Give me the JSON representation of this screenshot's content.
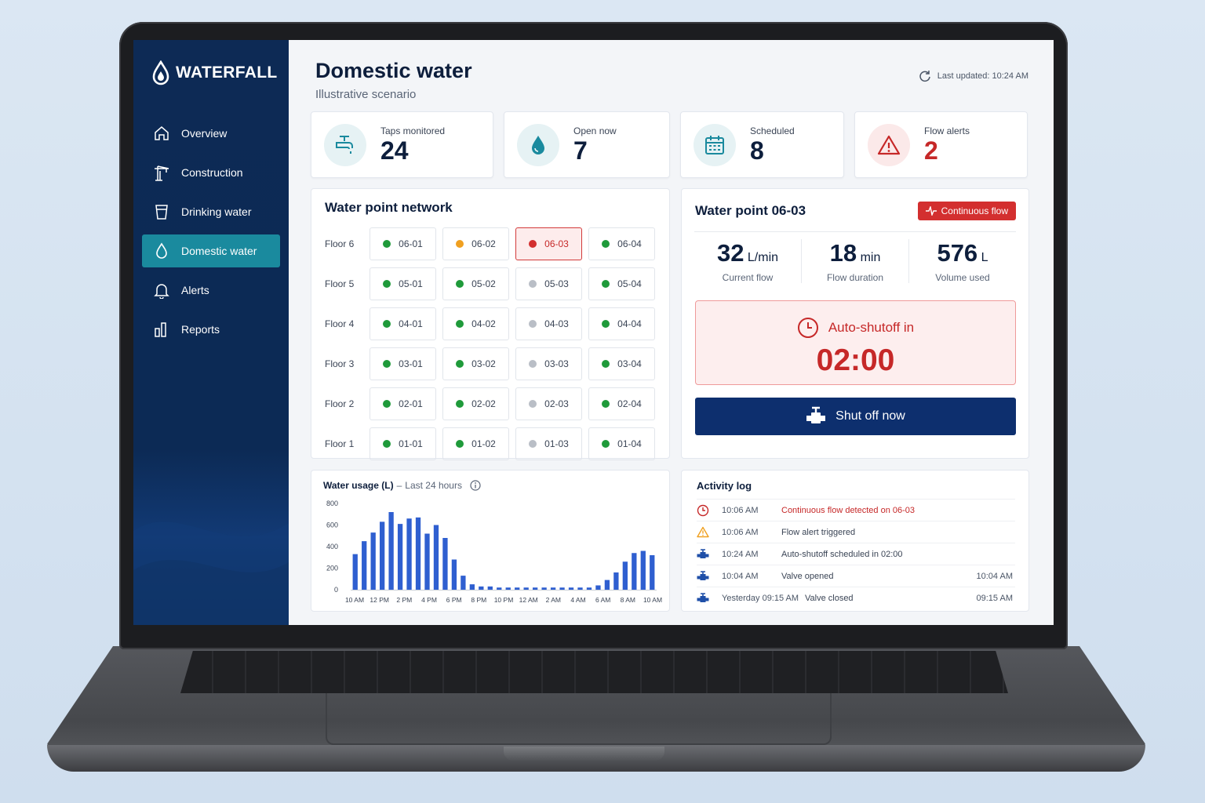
{
  "brand": {
    "name": "WATERFALL"
  },
  "nav": {
    "items": [
      {
        "label": "Overview",
        "icon": "home-icon"
      },
      {
        "label": "Construction",
        "icon": "crane-icon"
      },
      {
        "label": "Drinking water",
        "icon": "cup-icon"
      },
      {
        "label": "Domestic water",
        "icon": "droplet-icon",
        "active": true
      },
      {
        "label": "Alerts",
        "icon": "bell-icon"
      },
      {
        "label": "Reports",
        "icon": "bar-chart-icon"
      }
    ]
  },
  "header": {
    "title": "Domestic water",
    "subtitle": "Illustrative scenario",
    "last_updated": "Last updated: 10:24 AM"
  },
  "kpis": [
    {
      "label": "Taps monitored",
      "value": "24",
      "icon": "faucet-icon"
    },
    {
      "label": "Open now",
      "value": "7",
      "icon": "droplet-icon"
    },
    {
      "label": "Scheduled",
      "value": "8",
      "icon": "calendar-icon"
    },
    {
      "label": "Flow alerts",
      "value": "2",
      "icon": "warning-icon",
      "color": "#c62828"
    }
  ],
  "network": {
    "title": "Water point network",
    "rows": [
      {
        "floor": "Floor 6",
        "taps": [
          [
            "06-01",
            "green"
          ],
          [
            "06-02",
            "orange"
          ],
          [
            "06-03",
            "red"
          ],
          [
            "06-04",
            "green"
          ]
        ]
      },
      {
        "floor": "Floor 5",
        "taps": [
          [
            "05-01",
            "green"
          ],
          [
            "05-02",
            "green"
          ],
          [
            "05-03",
            "gray"
          ],
          [
            "05-04",
            "green"
          ]
        ]
      },
      {
        "floor": "Floor 4",
        "taps": [
          [
            "04-01",
            "green"
          ],
          [
            "04-02",
            "green"
          ],
          [
            "04-03",
            "gray"
          ],
          [
            "04-04",
            "green"
          ]
        ]
      },
      {
        "floor": "Floor 3",
        "taps": [
          [
            "03-01",
            "green"
          ],
          [
            "03-02",
            "green"
          ],
          [
            "03-03",
            "gray"
          ],
          [
            "03-04",
            "green"
          ]
        ]
      },
      {
        "floor": "Floor 2",
        "taps": [
          [
            "02-01",
            "green"
          ],
          [
            "02-02",
            "green"
          ],
          [
            "02-03",
            "gray"
          ],
          [
            "02-04",
            "green"
          ]
        ]
      },
      {
        "floor": "Floor 1",
        "taps": [
          [
            "01-01",
            "green"
          ],
          [
            "01-02",
            "green"
          ],
          [
            "01-03",
            "gray"
          ],
          [
            "01-04",
            "green"
          ]
        ]
      }
    ],
    "status_colors": {
      "green": "#1f9a3a",
      "orange": "#f0a020",
      "red": "#d32f2f",
      "gray": "#b9bec6"
    }
  },
  "detail": {
    "title": "Water point 06-03",
    "badge": "Continuous flow",
    "stats": [
      {
        "value": "32",
        "unit": "L/min",
        "caption": "Current flow"
      },
      {
        "value": "18",
        "unit": "min",
        "caption": "Flow duration"
      },
      {
        "value": "576",
        "unit": "L",
        "caption": "Volume used"
      }
    ],
    "shutoff_label": "Auto-shutoff in",
    "shutoff_time": "02:00",
    "button": "Shut off now"
  },
  "chart_data": {
    "type": "bar",
    "title": "Water usage (L)",
    "subtitle": "Last 24 hours",
    "ylim": [
      0,
      800
    ],
    "yticks": [
      "800",
      "600",
      "400",
      "200",
      "0"
    ],
    "xticks": [
      "10 AM",
      "12 PM",
      "2 PM",
      "4 PM",
      "6 PM",
      "8 PM",
      "10 PM",
      "12 AM",
      "2 AM",
      "4 AM",
      "6 AM",
      "8 AM",
      "10 AM"
    ],
    "values": [
      330,
      450,
      530,
      630,
      720,
      610,
      660,
      670,
      520,
      600,
      480,
      280,
      130,
      50,
      30,
      30,
      20,
      20,
      20,
      20,
      20,
      20,
      20,
      20,
      20,
      20,
      20,
      40,
      90,
      160,
      260,
      340,
      360,
      320
    ],
    "color": "#2f5fd0"
  },
  "log": {
    "title": "Activity log",
    "entries": [
      {
        "icon": "clock-icon",
        "time": "10:06 AM",
        "text": "Continuous flow detected on 06-03",
        "right": "",
        "alert": true
      },
      {
        "icon": "warning-icon",
        "time": "10:06 AM",
        "text": "Flow alert triggered",
        "right": ""
      },
      {
        "icon": "valve-icon",
        "time": "10:24 AM",
        "text": "Auto-shutoff scheduled in 02:00",
        "right": ""
      },
      {
        "icon": "valve-icon",
        "time": "10:04 AM",
        "text": "Valve opened",
        "right": "10:04 AM"
      },
      {
        "icon": "valve-icon",
        "time": "Yesterday 09:15 AM",
        "text": "Valve closed",
        "right": "09:15 AM"
      }
    ]
  }
}
